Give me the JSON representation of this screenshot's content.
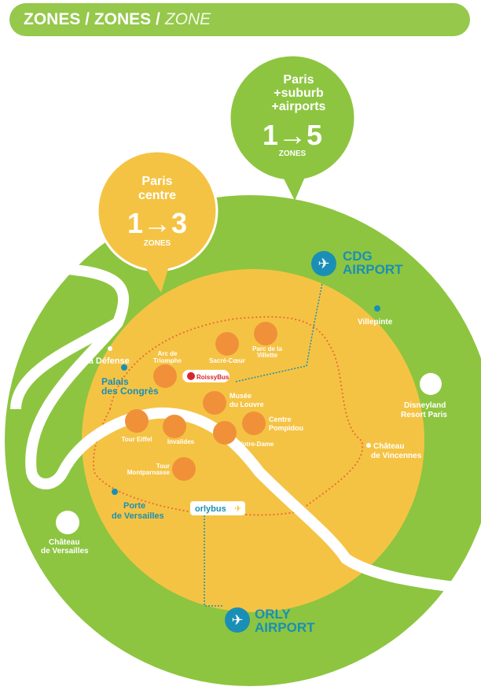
{
  "header": {
    "title_bold": "ZONES / ZONES /",
    "title_italic": "ZONE"
  },
  "colors": {
    "green": "#8dc540",
    "yellow": "#f5c343",
    "orange": "#f0913a",
    "blue": "#1a8fb5",
    "header": "#95c84b"
  },
  "bubbles": {
    "centre": {
      "line1": "Paris",
      "line2": "centre",
      "range": "1→3",
      "unit": "ZONES"
    },
    "suburb": {
      "line1": "Paris",
      "line2": "+suburb",
      "line3": "+airports",
      "range": "1→5",
      "unit": "ZONES"
    }
  },
  "airports": {
    "cdg": [
      "CDG",
      "AIRPORT"
    ],
    "orly": [
      "ORLY",
      "AIRPORT"
    ]
  },
  "buses": {
    "roissy": "RoissyBus",
    "orly": "orlybus"
  },
  "places": {
    "la_defense": "La Défense",
    "palais": [
      "Palais",
      "des Congrès"
    ],
    "porte": [
      "Porte",
      "de Versailles"
    ],
    "villepinte": "Villepinte",
    "disney": [
      "Disneyland",
      "Resort Paris"
    ],
    "vincennes": [
      "Château",
      "de Vincennes"
    ],
    "versailles": [
      "Château",
      "de Versailles"
    ]
  },
  "monuments": {
    "arc": [
      "Arc de",
      "Triomphe"
    ],
    "sacre": "Sacré-Cœur",
    "villette": [
      "Parc de la",
      "Villette"
    ],
    "louvre": [
      "Musée",
      "du Louvre"
    ],
    "pompidou": [
      "Centre",
      "Pompidou"
    ],
    "notre": "Notre-Dame",
    "eiffel": "Tour Eiffel",
    "invalides": "Invalides",
    "montparnasse": [
      "Tour",
      "Montparnasse"
    ]
  }
}
